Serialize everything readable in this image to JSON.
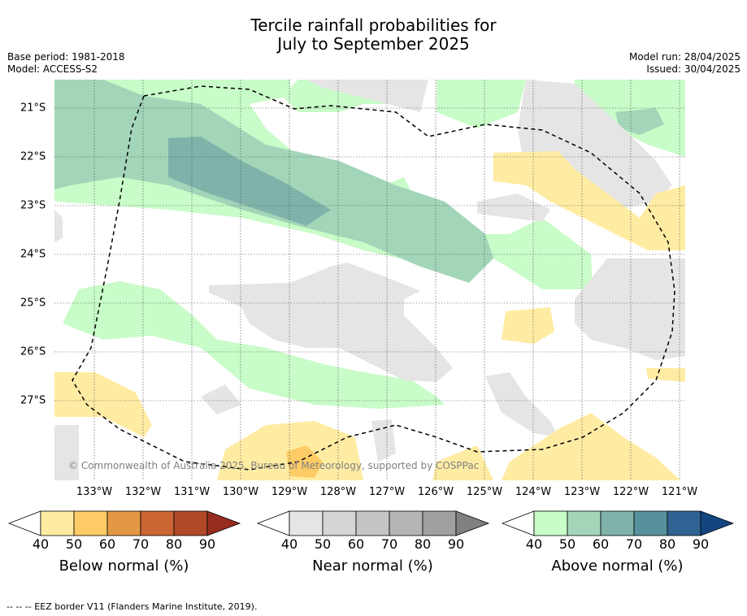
{
  "title": {
    "line1": "Tercile rainfall probabilities for",
    "line2": "July to September 2025"
  },
  "meta": {
    "base_period": "Base period: 1981-2018",
    "model": "Model: ACCESS-S2",
    "model_run": "Model run: 28/04/2025",
    "issued": "Issued: 30/04/2025"
  },
  "copyright": "© Commonwealth of Australia 2025, Bureau of Meteorology, supported by COSPPac",
  "footer": "--  --  -- EEZ border V11 (Flanders Marine Institute, 2019).",
  "colors": {
    "below": [
      "#ffffff",
      "#ffeca3",
      "#fdcc66",
      "#e39844",
      "#cc6534",
      "#b04928",
      "#962d1e"
    ],
    "near": [
      "#ffffff",
      "#e5e5e5",
      "#d5d5d5",
      "#c5c5c5",
      "#b5b5b5",
      "#a0a0a0",
      "#808080"
    ],
    "above": [
      "#ffffff",
      "#c8fcc8",
      "#a3d6b9",
      "#7fb3a9",
      "#57919c",
      "#2e6393",
      "#134680"
    ]
  },
  "chart_data": {
    "type": "heatmap",
    "title": "Tercile rainfall probabilities for July to September 2025",
    "lon_ticks": [
      "133°W",
      "132°W",
      "131°W",
      "130°W",
      "129°W",
      "128°W",
      "127°W",
      "126°W",
      "125°W",
      "124°W",
      "123°W",
      "122°W",
      "121°W"
    ],
    "lat_ticks": [
      "21°S",
      "22°S",
      "23°S",
      "24°S",
      "25°S",
      "26°S",
      "27°S"
    ],
    "lon_range": [
      -133.8,
      -120.9
    ],
    "lat_range": [
      -28.6,
      -20.4
    ],
    "colorbars": [
      {
        "name": "Below normal (%)",
        "ticks": [
          "40",
          "50",
          "60",
          "70",
          "80",
          "90"
        ]
      },
      {
        "name": "Near normal (%)",
        "ticks": [
          "40",
          "50",
          "60",
          "70",
          "80",
          "90"
        ]
      },
      {
        "name": "Above normal (%)",
        "ticks": [
          "40",
          "50",
          "60",
          "70",
          "80",
          "90"
        ]
      }
    ],
    "grid": true,
    "eez_border": "dashed"
  }
}
